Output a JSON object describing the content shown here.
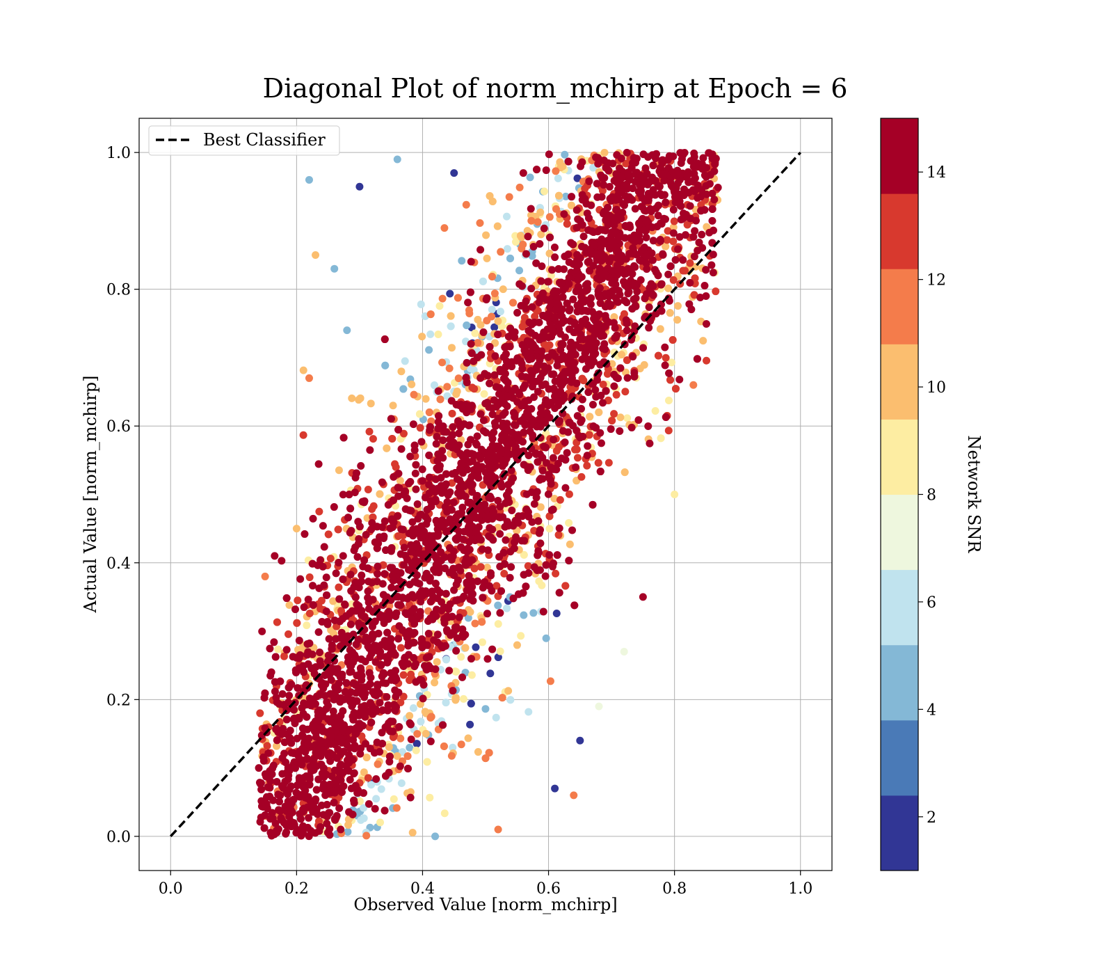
{
  "chart_data": {
    "type": "scatter",
    "title": "Diagonal Plot of norm_mchirp at Epoch = 6",
    "xlabel": "Observed Value [norm_mchirp]",
    "ylabel": "Actual Value [norm_mchirp]",
    "xlim": [
      -0.05,
      1.05
    ],
    "ylim": [
      -0.05,
      1.05
    ],
    "x_ticks": [
      0.0,
      0.2,
      0.4,
      0.6,
      0.8,
      1.0
    ],
    "y_ticks": [
      0.0,
      0.2,
      0.4,
      0.6,
      0.8,
      1.0
    ],
    "x_tick_labels": [
      "0.0",
      "0.2",
      "0.4",
      "0.6",
      "0.8",
      "1.0"
    ],
    "y_tick_labels": [
      "0.0",
      "0.2",
      "0.4",
      "0.6",
      "0.8",
      "1.0"
    ],
    "grid": true,
    "legend": {
      "placement": "upper-left",
      "entries": [
        "Best Classifier"
      ]
    },
    "reference_line": {
      "name": "Best Classifier",
      "x": [
        0.0,
        1.0
      ],
      "y": [
        0.0,
        1.0
      ],
      "style": "dashed",
      "color": "#000000"
    },
    "colorbar": {
      "label": "Network SNR",
      "range": [
        1,
        15
      ],
      "ticks": [
        2,
        4,
        6,
        8,
        10,
        12,
        14
      ],
      "tick_labels": [
        "2",
        "4",
        "6",
        "8",
        "10",
        "12",
        "14"
      ],
      "colors": [
        "#313695",
        "#4a7ab7",
        "#84b8d6",
        "#c0e3ee",
        "#eef7de",
        "#fdeda2",
        "#fbbe6f",
        "#f47c4b",
        "#d8392e",
        "#a50026"
      ]
    },
    "scatter": {
      "description_bounds": "dense band along the diagonal; observed range approx 0.14–0.87, actual range 0.0–1.0",
      "sample_points": [
        {
          "x": 0.15,
          "y": 0.38,
          "snr": 11
        },
        {
          "x": 0.16,
          "y": 0.24,
          "snr": 14
        },
        {
          "x": 0.2,
          "y": 0.45,
          "snr": 10
        },
        {
          "x": 0.22,
          "y": 0.67,
          "snr": 11
        },
        {
          "x": 0.23,
          "y": 0.85,
          "snr": 10
        },
        {
          "x": 0.26,
          "y": 0.83,
          "snr": 5
        },
        {
          "x": 0.28,
          "y": 0.74,
          "snr": 5
        },
        {
          "x": 0.3,
          "y": 0.95,
          "snr": 2
        },
        {
          "x": 0.36,
          "y": 0.99,
          "snr": 5
        },
        {
          "x": 0.45,
          "y": 0.97,
          "snr": 2
        },
        {
          "x": 0.56,
          "y": 0.97,
          "snr": 14
        },
        {
          "x": 0.68,
          "y": 0.99,
          "snr": 14
        },
        {
          "x": 0.79,
          "y": 0.99,
          "snr": 14
        },
        {
          "x": 0.86,
          "y": 0.94,
          "snr": 14
        },
        {
          "x": 0.86,
          "y": 0.9,
          "snr": 14
        },
        {
          "x": 0.85,
          "y": 0.79,
          "snr": 14
        },
        {
          "x": 0.83,
          "y": 0.66,
          "snr": 11
        },
        {
          "x": 0.8,
          "y": 0.5,
          "snr": 9
        },
        {
          "x": 0.75,
          "y": 0.35,
          "snr": 14
        },
        {
          "x": 0.72,
          "y": 0.27,
          "snr": 7
        },
        {
          "x": 0.68,
          "y": 0.19,
          "snr": 7
        },
        {
          "x": 0.65,
          "y": 0.14,
          "snr": 2
        },
        {
          "x": 0.64,
          "y": 0.06,
          "snr": 11
        },
        {
          "x": 0.61,
          "y": 0.07,
          "snr": 2
        },
        {
          "x": 0.52,
          "y": 0.01,
          "snr": 11
        },
        {
          "x": 0.42,
          "y": 0.0,
          "snr": 5
        },
        {
          "x": 0.27,
          "y": 0.01,
          "snr": 14
        },
        {
          "x": 0.18,
          "y": 0.02,
          "snr": 14
        },
        {
          "x": 0.14,
          "y": 0.1,
          "snr": 14
        },
        {
          "x": 0.22,
          "y": 0.96,
          "snr": 5
        }
      ]
    }
  }
}
